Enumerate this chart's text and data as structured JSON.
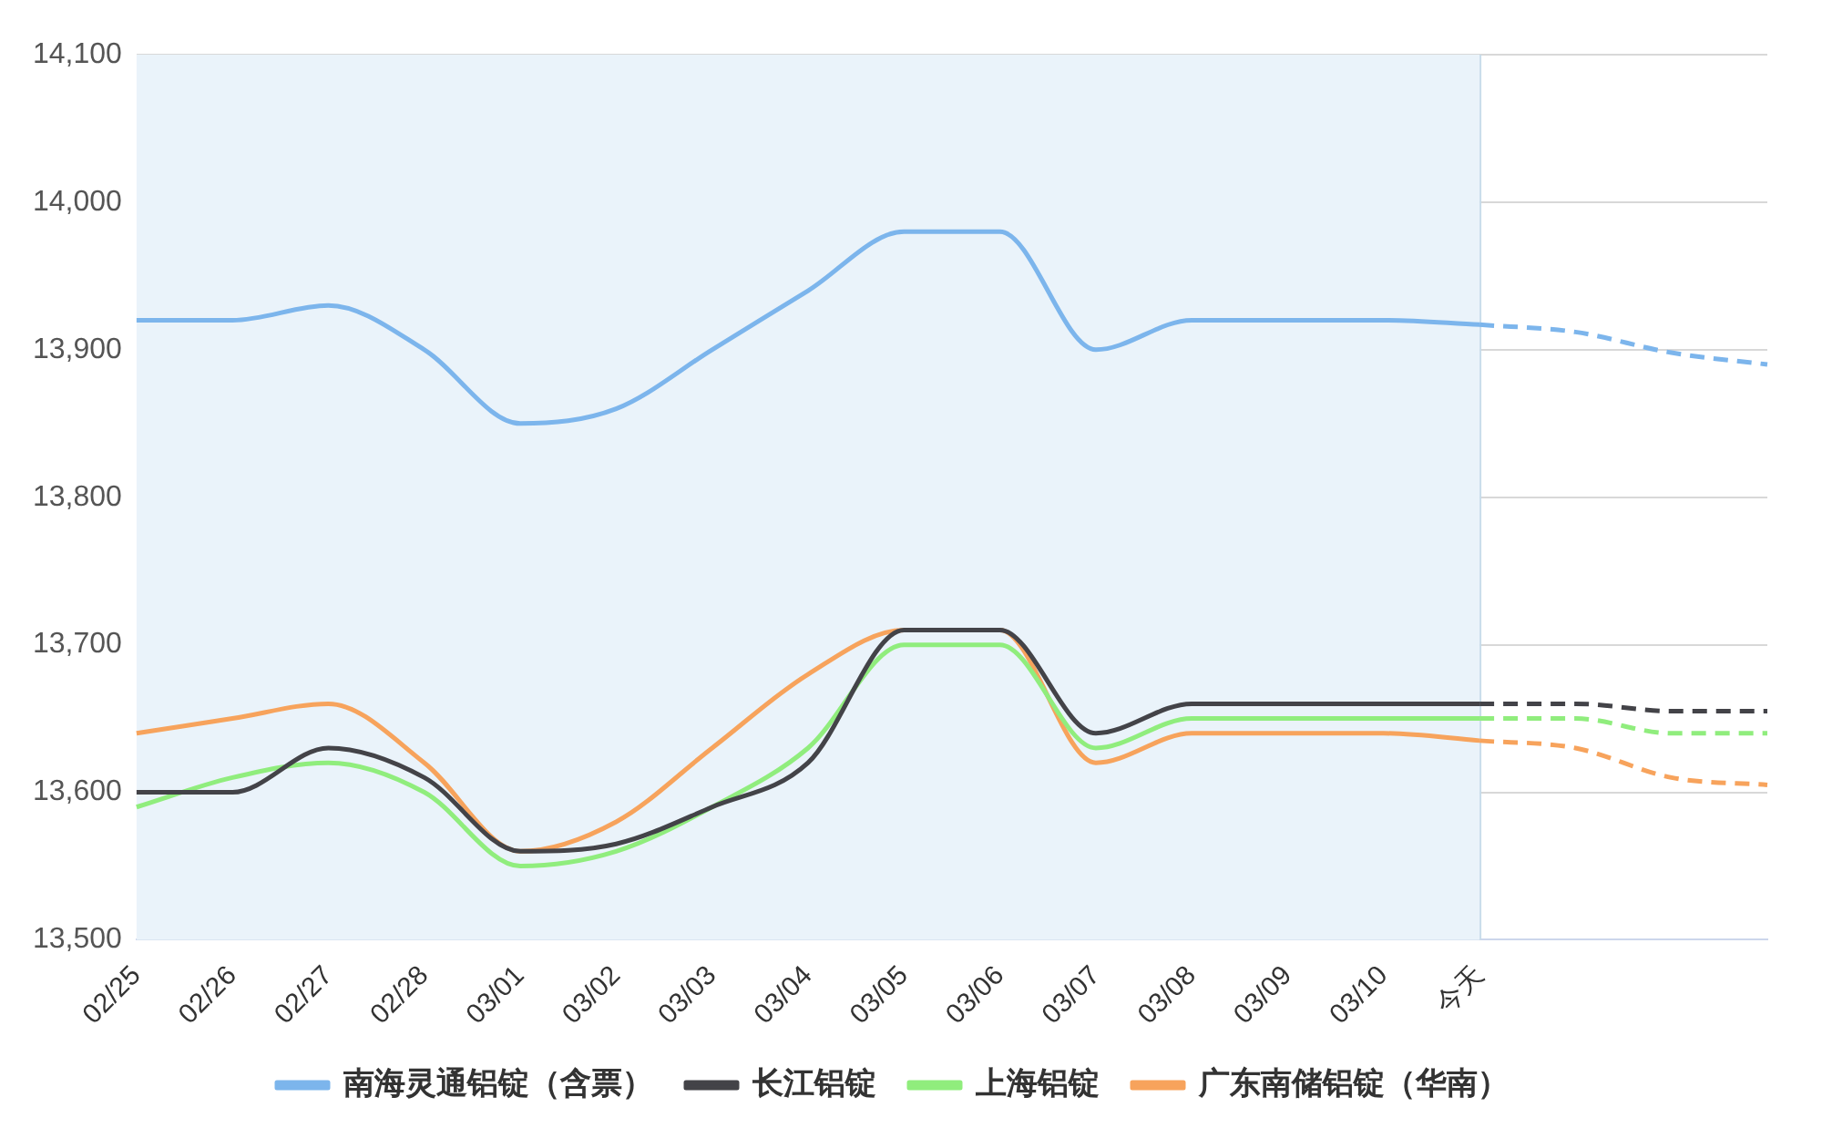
{
  "chart_data": {
    "type": "line",
    "categories": [
      "02/25",
      "02/26",
      "02/27",
      "02/28",
      "03/01",
      "03/02",
      "03/03",
      "03/04",
      "03/05",
      "03/06",
      "03/07",
      "03/08",
      "03/09",
      "03/10",
      "今天",
      null,
      null,
      null
    ],
    "series": [
      {
        "name": "南海灵通铝锭（含票）",
        "color": "#7cb5ec",
        "values": [
          13920,
          13920,
          13930,
          13900,
          13850,
          13860,
          13900,
          13940,
          13980,
          13980,
          13900,
          13920,
          13920,
          13920,
          13917,
          null,
          null,
          null
        ]
      },
      {
        "name": "长江铝锭",
        "color": "#434348",
        "values": [
          13600,
          13600,
          13630,
          13610,
          13560,
          13565,
          13590,
          13620,
          13710,
          13710,
          13640,
          13660,
          13660,
          13660,
          13660,
          null,
          null,
          null
        ]
      },
      {
        "name": "上海铝锭",
        "color": "#90ed7d",
        "values": [
          13590,
          13610,
          13620,
          13600,
          13550,
          13560,
          13590,
          13630,
          13700,
          13700,
          13630,
          13650,
          13650,
          13650,
          13650,
          null,
          null,
          null
        ]
      },
      {
        "name": "广东南储铝锭（华南）",
        "color": "#f7a35c",
        "values": [
          13640,
          13650,
          13660,
          13620,
          13560,
          13580,
          13630,
          13680,
          13710,
          13710,
          13620,
          13640,
          13640,
          13640,
          13635,
          null,
          null,
          null
        ]
      },
      {
        "color": "#7cb5ec",
        "line_style": "dashed",
        "values": [
          null,
          null,
          null,
          null,
          null,
          null,
          null,
          null,
          null,
          null,
          null,
          null,
          null,
          null,
          13917,
          13912,
          13898,
          13890
        ]
      },
      {
        "color": "#434348",
        "line_style": "dashed",
        "values": [
          null,
          null,
          null,
          null,
          null,
          null,
          null,
          null,
          null,
          null,
          null,
          null,
          null,
          null,
          13660,
          13660,
          13655,
          13655
        ]
      },
      {
        "color": "#90ed7d",
        "line_style": "dashed",
        "values": [
          null,
          null,
          null,
          null,
          null,
          null,
          null,
          null,
          null,
          null,
          null,
          null,
          null,
          null,
          13650,
          13650,
          13640,
          13640
        ]
      },
      {
        "color": "#f7a35c",
        "line_style": "dashed",
        "values": [
          null,
          null,
          null,
          null,
          null,
          null,
          null,
          null,
          null,
          null,
          null,
          null,
          null,
          null,
          13635,
          13630,
          13610,
          13605
        ]
      }
    ],
    "ylim": [
      13500,
      14100
    ],
    "yticks": [
      {
        "value": 13500,
        "label": "13,500"
      },
      {
        "value": 13600,
        "label": "13,600"
      },
      {
        "value": 13700,
        "label": "13,700"
      },
      {
        "value": 13800,
        "label": "13,800"
      },
      {
        "value": 13900,
        "label": "13,900"
      },
      {
        "value": 14000,
        "label": "14,000"
      },
      {
        "value": 14100,
        "label": "14,100"
      }
    ],
    "bands": [
      {
        "axis": "x",
        "from": "02/25",
        "to": "今天",
        "color": "#eaf3fa"
      }
    ],
    "ref_lines": [
      {
        "axis": "x",
        "value": "今天",
        "color": "#c8dcea"
      }
    ],
    "grid": "y",
    "legend": "bottom",
    "marker": "none",
    "line_style": "solid"
  }
}
